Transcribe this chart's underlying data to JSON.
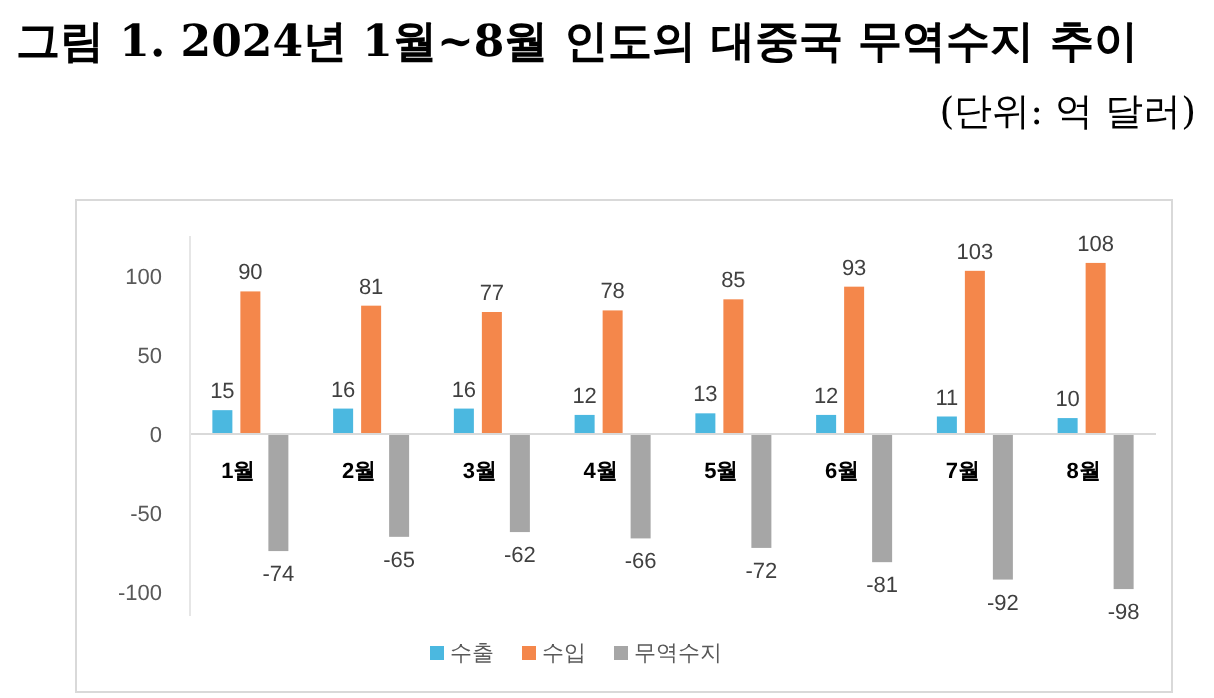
{
  "chart_data": {
    "type": "bar",
    "title": "그림 1. 2024년 1월~8월 인도의 대중국 무역수지 추이",
    "subtitle": "(단위: 억 달러)",
    "categories": [
      "1월",
      "2월",
      "3월",
      "4월",
      "5월",
      "6월",
      "7월",
      "8월"
    ],
    "series": [
      {
        "name": "수출",
        "color": "#4bb8e0",
        "values": [
          15,
          16,
          16,
          12,
          13,
          12,
          11,
          10
        ]
      },
      {
        "name": "수입",
        "color": "#f4874b",
        "values": [
          90,
          81,
          77,
          78,
          85,
          93,
          103,
          108
        ]
      },
      {
        "name": "무역수지",
        "color": "#a6a6a6",
        "values": [
          -74,
          -65,
          -62,
          -66,
          -72,
          -81,
          -92,
          -98
        ]
      }
    ],
    "ylim": [
      -115,
      125
    ],
    "yticks": [
      -100,
      -50,
      0,
      50,
      100
    ],
    "data_labels": true,
    "legend": "bottom",
    "grid": false
  }
}
